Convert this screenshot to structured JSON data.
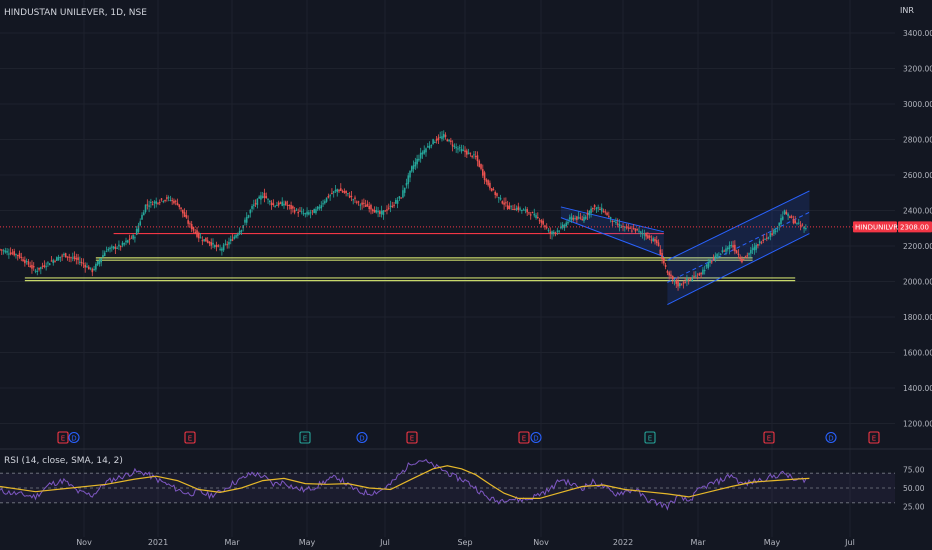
{
  "header": {
    "symbol_line": "HINDUSTAN UNILEVER, 1D, NSE",
    "currency": "INR"
  },
  "price_axis": {
    "labels": [
      "3400.00",
      "3200.00",
      "3000.00",
      "2800.00",
      "2600.00",
      "2400.00",
      "2200.00",
      "2000.00",
      "1800.00",
      "1600.00",
      "1400.00",
      "1200.00"
    ]
  },
  "last_price": {
    "symbol_tag": "HINDUNILVR",
    "value": "2308.00",
    "value_numeric": 2308,
    "color": "#f23645"
  },
  "time_axis": {
    "labels": [
      "Nov",
      "2021",
      "Mar",
      "May",
      "Jul",
      "Sep",
      "Nov",
      "2022",
      "Mar",
      "May",
      "Jul"
    ]
  },
  "events": [
    {
      "type": "E",
      "color": "#f23645"
    },
    {
      "type": "D",
      "color": "#2962ff"
    },
    {
      "type": "E",
      "color": "#f23645"
    },
    {
      "type": "E",
      "color": "#26a69a"
    },
    {
      "type": "D",
      "color": "#2962ff"
    },
    {
      "type": "E",
      "color": "#f23645"
    },
    {
      "type": "E",
      "color": "#f23645"
    },
    {
      "type": "D",
      "color": "#2962ff"
    },
    {
      "type": "E",
      "color": "#26a69a"
    },
    {
      "type": "E",
      "color": "#f23645"
    },
    {
      "type": "D",
      "color": "#2962ff"
    },
    {
      "type": "E",
      "color": "#f23645"
    }
  ],
  "rsi_panel": {
    "title": "RSI (14, close, SMA, 14, 2)",
    "axis_labels": [
      "75.00",
      "50.00",
      "25.00"
    ]
  },
  "chart_data": {
    "type": "candlestick",
    "y_unit": "INR",
    "ylim": [
      1150,
      3500
    ],
    "price_path": [
      [
        0,
        2180
      ],
      [
        5,
        2150
      ],
      [
        10,
        2060
      ],
      [
        14,
        2110
      ],
      [
        18,
        2150
      ],
      [
        22,
        2120
      ],
      [
        26,
        2060
      ],
      [
        30,
        2180
      ],
      [
        34,
        2200
      ],
      [
        38,
        2260
      ],
      [
        41,
        2430
      ],
      [
        44,
        2450
      ],
      [
        47,
        2470
      ],
      [
        50,
        2440
      ],
      [
        53,
        2330
      ],
      [
        56,
        2250
      ],
      [
        59,
        2220
      ],
      [
        62,
        2180
      ],
      [
        65,
        2230
      ],
      [
        68,
        2300
      ],
      [
        71,
        2420
      ],
      [
        74,
        2490
      ],
      [
        77,
        2430
      ],
      [
        80,
        2440
      ],
      [
        83,
        2400
      ],
      [
        86,
        2380
      ],
      [
        89,
        2400
      ],
      [
        92,
        2470
      ],
      [
        95,
        2520
      ],
      [
        98,
        2490
      ],
      [
        101,
        2440
      ],
      [
        104,
        2420
      ],
      [
        107,
        2380
      ],
      [
        110,
        2420
      ],
      [
        113,
        2480
      ],
      [
        116,
        2640
      ],
      [
        119,
        2730
      ],
      [
        122,
        2790
      ],
      [
        125,
        2820
      ],
      [
        128,
        2760
      ],
      [
        131,
        2730
      ],
      [
        134,
        2700
      ],
      [
        137,
        2560
      ],
      [
        140,
        2480
      ],
      [
        143,
        2420
      ],
      [
        146,
        2410
      ],
      [
        149,
        2390
      ],
      [
        152,
        2350
      ],
      [
        155,
        2270
      ],
      [
        158,
        2300
      ],
      [
        161,
        2360
      ],
      [
        164,
        2350
      ],
      [
        167,
        2420
      ],
      [
        170,
        2400
      ],
      [
        173,
        2330
      ],
      [
        176,
        2300
      ],
      [
        179,
        2290
      ],
      [
        182,
        2260
      ],
      [
        185,
        2220
      ],
      [
        188,
        2040
      ],
      [
        191,
        1980
      ],
      [
        194,
        2010
      ],
      [
        197,
        2040
      ],
      [
        200,
        2110
      ],
      [
        203,
        2160
      ],
      [
        206,
        2210
      ],
      [
        209,
        2120
      ],
      [
        212,
        2180
      ],
      [
        215,
        2240
      ],
      [
        218,
        2280
      ],
      [
        221,
        2390
      ],
      [
        224,
        2330
      ],
      [
        227,
        2300
      ]
    ],
    "horizontal_levels": [
      {
        "price": 2270,
        "color": "#f23645"
      },
      {
        "price": 2133,
        "color": "#c9d96b"
      },
      {
        "price": 2120,
        "color": "#c9d96b"
      },
      {
        "price": 2020,
        "color": "#c9d96b"
      },
      {
        "price": 2005,
        "color": "#c9d96b"
      }
    ],
    "channels": [
      {
        "name": "",
        "lines": [
          [
            [
              158,
              2420
            ],
            [
              187,
              2280
            ]
          ],
          [
            [
              158,
              2360
            ],
            [
              187,
              2140
            ]
          ]
        ]
      },
      {
        "name": "",
        "lines": [
          [
            [
              188,
              2120
            ],
            [
              228,
              2510
            ]
          ],
          [
            [
              188,
              1870
            ],
            [
              228,
              2270
            ]
          ]
        ]
      }
    ],
    "rsi": {
      "ylim": [
        0,
        100
      ],
      "levels": [
        70,
        50,
        30
      ],
      "rsi_path": [
        [
          0,
          46
        ],
        [
          5,
          42
        ],
        [
          10,
          38
        ],
        [
          14,
          55
        ],
        [
          18,
          60
        ],
        [
          22,
          45
        ],
        [
          26,
          40
        ],
        [
          30,
          58
        ],
        [
          34,
          65
        ],
        [
          38,
          72
        ],
        [
          41,
          70
        ],
        [
          44,
          62
        ],
        [
          47,
          55
        ],
        [
          50,
          48
        ],
        [
          53,
          42
        ],
        [
          56,
          45
        ],
        [
          59,
          40
        ],
        [
          62,
          44
        ],
        [
          65,
          55
        ],
        [
          68,
          62
        ],
        [
          71,
          70
        ],
        [
          74,
          66
        ],
        [
          77,
          55
        ],
        [
          80,
          58
        ],
        [
          83,
          50
        ],
        [
          86,
          47
        ],
        [
          89,
          52
        ],
        [
          92,
          60
        ],
        [
          95,
          65
        ],
        [
          98,
          54
        ],
        [
          101,
          45
        ],
        [
          104,
          43
        ],
        [
          107,
          46
        ],
        [
          110,
          55
        ],
        [
          113,
          70
        ],
        [
          116,
          85
        ],
        [
          119,
          88
        ],
        [
          122,
          80
        ],
        [
          125,
          74
        ],
        [
          128,
          65
        ],
        [
          131,
          60
        ],
        [
          134,
          50
        ],
        [
          137,
          38
        ],
        [
          140,
          32
        ],
        [
          143,
          36
        ],
        [
          146,
          34
        ],
        [
          149,
          35
        ],
        [
          152,
          42
        ],
        [
          155,
          48
        ],
        [
          158,
          62
        ],
        [
          161,
          55
        ],
        [
          164,
          50
        ],
        [
          167,
          58
        ],
        [
          170,
          52
        ],
        [
          173,
          42
        ],
        [
          176,
          45
        ],
        [
          179,
          48
        ],
        [
          182,
          35
        ],
        [
          185,
          30
        ],
        [
          188,
          25
        ],
        [
          191,
          38
        ],
        [
          194,
          32
        ],
        [
          197,
          48
        ],
        [
          200,
          55
        ],
        [
          203,
          60
        ],
        [
          206,
          68
        ],
        [
          209,
          55
        ],
        [
          212,
          58
        ],
        [
          215,
          62
        ],
        [
          218,
          66
        ],
        [
          221,
          70
        ],
        [
          224,
          60
        ],
        [
          227,
          62
        ]
      ],
      "sma_path": [
        [
          0,
          52
        ],
        [
          10,
          45
        ],
        [
          20,
          50
        ],
        [
          30,
          55
        ],
        [
          38,
          62
        ],
        [
          44,
          66
        ],
        [
          50,
          60
        ],
        [
          56,
          48
        ],
        [
          62,
          44
        ],
        [
          68,
          50
        ],
        [
          74,
          60
        ],
        [
          80,
          63
        ],
        [
          86,
          56
        ],
        [
          92,
          55
        ],
        [
          98,
          56
        ],
        [
          104,
          50
        ],
        [
          110,
          48
        ],
        [
          116,
          62
        ],
        [
          122,
          76
        ],
        [
          126,
          80
        ],
        [
          130,
          76
        ],
        [
          134,
          68
        ],
        [
          138,
          55
        ],
        [
          142,
          43
        ],
        [
          146,
          36
        ],
        [
          152,
          36
        ],
        [
          158,
          44
        ],
        [
          164,
          52
        ],
        [
          170,
          54
        ],
        [
          176,
          48
        ],
        [
          182,
          45
        ],
        [
          188,
          42
        ],
        [
          194,
          38
        ],
        [
          200,
          45
        ],
        [
          206,
          52
        ],
        [
          212,
          58
        ],
        [
          218,
          60
        ],
        [
          224,
          62
        ],
        [
          228,
          63
        ]
      ]
    },
    "time_labels": [
      "Nov",
      "2021",
      "Mar",
      "May",
      "Jul",
      "Sep",
      "Nov",
      "2022",
      "Mar",
      "May",
      "Jul"
    ]
  }
}
